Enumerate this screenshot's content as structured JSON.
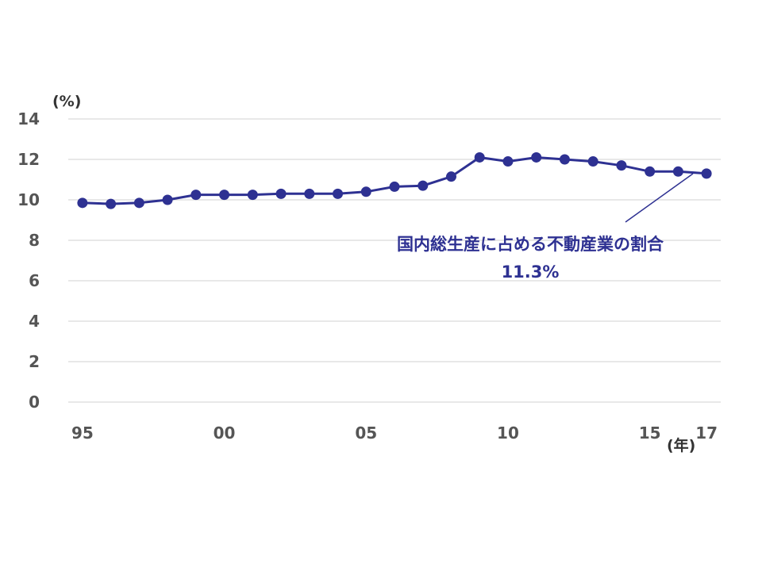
{
  "chart_data": {
    "type": "line",
    "title": "",
    "ylabel": "(%)",
    "xlabel": "(年)",
    "ylim": [
      0,
      14
    ],
    "yticks": [
      0,
      2,
      4,
      6,
      8,
      10,
      12,
      14
    ],
    "x_tick_labels": [
      "95",
      "00",
      "05",
      "10",
      "15",
      "17"
    ],
    "x": [
      1995,
      1996,
      1997,
      1998,
      1999,
      2000,
      2001,
      2002,
      2003,
      2004,
      2005,
      2006,
      2007,
      2008,
      2009,
      2010,
      2011,
      2012,
      2013,
      2014,
      2015,
      2016,
      2017
    ],
    "series": [
      {
        "values": [
          9.85,
          9.8,
          9.85,
          10.0,
          10.25,
          10.25,
          10.25,
          10.3,
          10.3,
          10.3,
          10.4,
          10.65,
          10.7,
          11.15,
          12.1,
          11.9,
          12.1,
          12.0,
          11.9,
          11.7,
          11.4,
          11.4,
          11.3
        ],
        "color": "#2e3192"
      }
    ],
    "annotation": {
      "line1": "国内総生産に占める不動産業の割合",
      "line2": "11.3%"
    },
    "grid": true,
    "legend": "none"
  }
}
